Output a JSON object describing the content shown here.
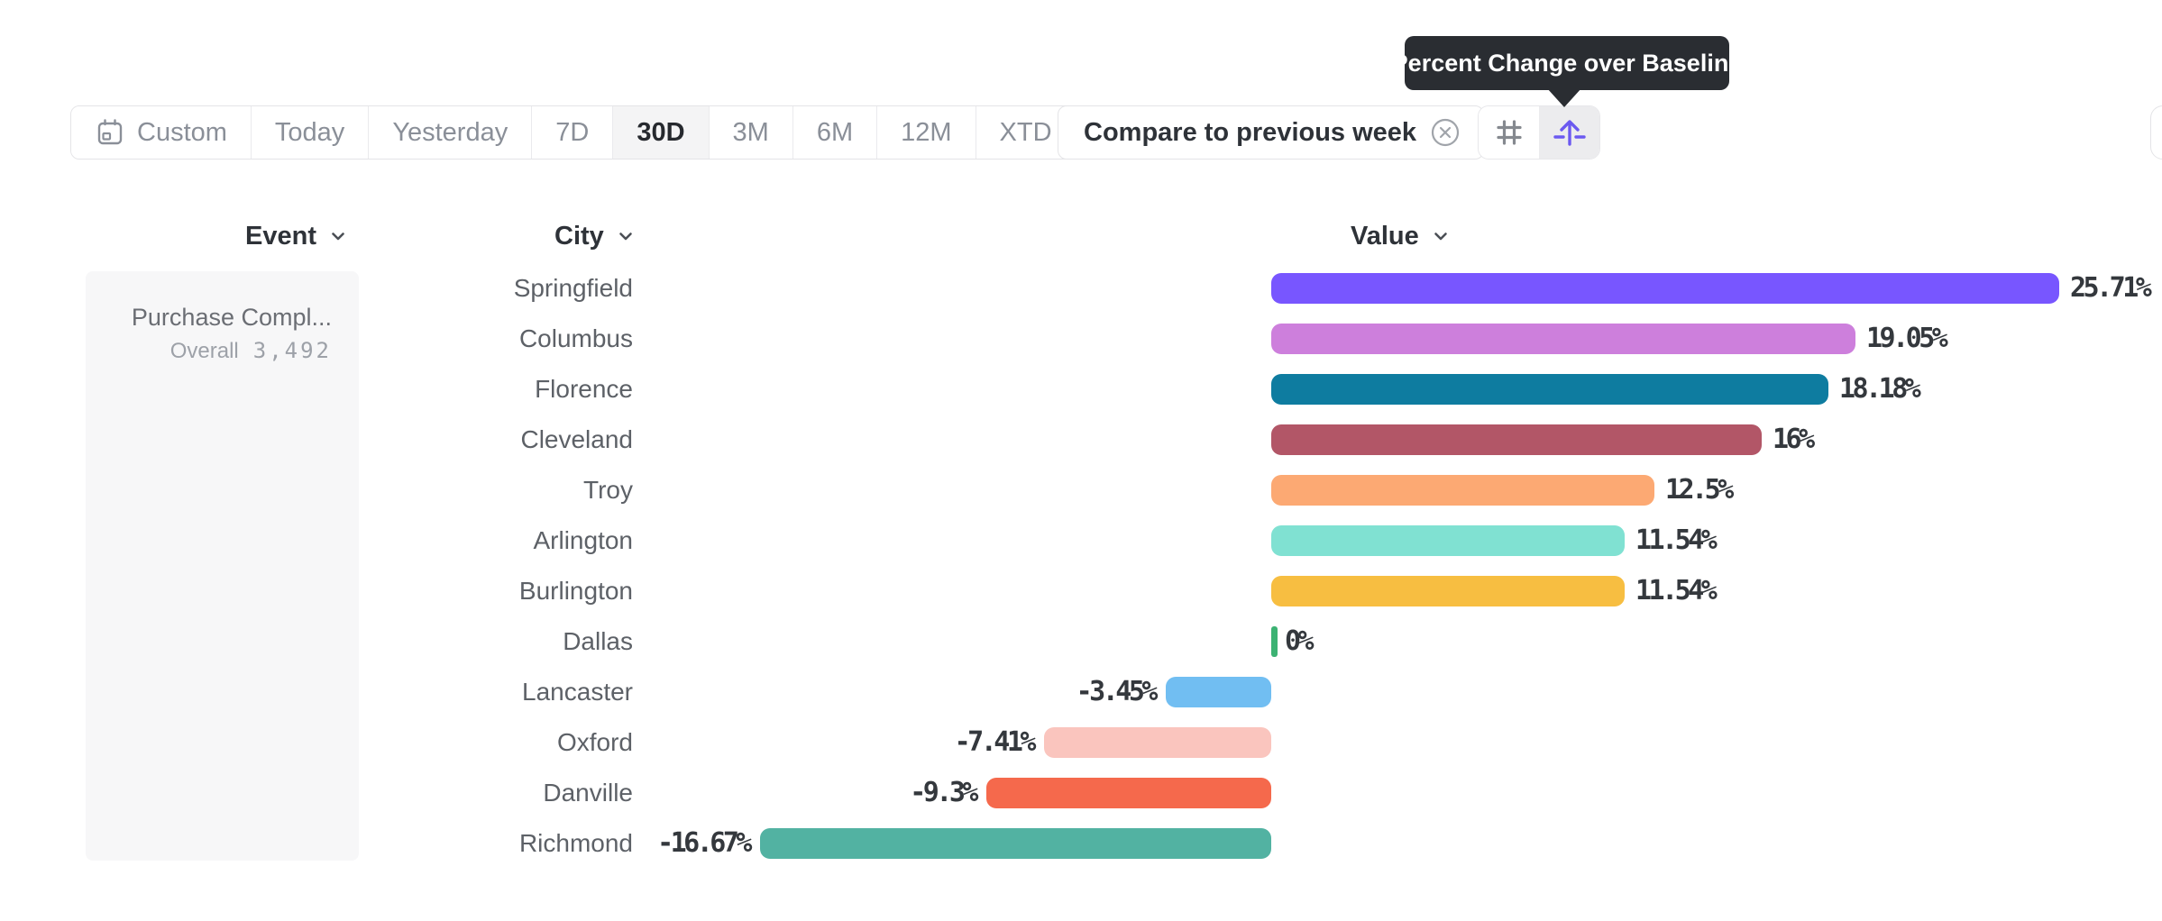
{
  "toolbar": {
    "date_ranges": [
      {
        "label": "Custom",
        "icon": "calendar-icon",
        "selected": false
      },
      {
        "label": "Today",
        "selected": false
      },
      {
        "label": "Yesterday",
        "selected": false
      },
      {
        "label": "7D",
        "selected": false
      },
      {
        "label": "30D",
        "selected": true
      },
      {
        "label": "3M",
        "selected": false
      },
      {
        "label": "6M",
        "selected": false
      },
      {
        "label": "12M",
        "selected": false
      },
      {
        "label": "XTD",
        "chevron": true,
        "selected": false
      }
    ],
    "compare_label": "Compare to previous week",
    "view_toggle": {
      "left_icon": "hash-icon",
      "right_icon": "arrow-up-baseline-icon",
      "active": "right",
      "accent_color": "#6B59F0"
    }
  },
  "tooltip": {
    "text": "Percent Change over Baseline",
    "bg": "#2A2D32"
  },
  "columns": {
    "event": "Event",
    "city": "City",
    "value": "Value"
  },
  "event_card": {
    "title": "Purchase Compl...",
    "subtitle_label": "Overall",
    "subtitle_value": "3,492"
  },
  "chart_data": {
    "type": "bar",
    "orientation": "horizontal",
    "title": "Percent Change over Baseline",
    "unit": "%",
    "xlim": [
      -16.67,
      25.71
    ],
    "baseline": 0,
    "categories": [
      "Springfield",
      "Columbus",
      "Florence",
      "Cleveland",
      "Troy",
      "Arlington",
      "Burlington",
      "Dallas",
      "Lancaster",
      "Oxford",
      "Danville",
      "Richmond"
    ],
    "values": [
      25.71,
      19.05,
      18.18,
      16,
      12.5,
      11.54,
      11.54,
      0,
      -3.45,
      -7.41,
      -9.3,
      -16.67
    ],
    "value_labels": [
      "25.71%",
      "19.05%",
      "18.18%",
      "16%",
      "12.5%",
      "11.54%",
      "11.54%",
      "0%",
      "-3.45%",
      "-7.41%",
      "-9.3%",
      "-16.67%"
    ],
    "bar_colors": [
      "#7856FF",
      "#CD7FDC",
      "#0E7CA0",
      "#B25667",
      "#FCA973",
      "#80E1D2",
      "#F7BE41",
      "#3CB273",
      "#71BEF2",
      "#FAC5BE",
      "#F5694C",
      "#52B2A2"
    ]
  }
}
